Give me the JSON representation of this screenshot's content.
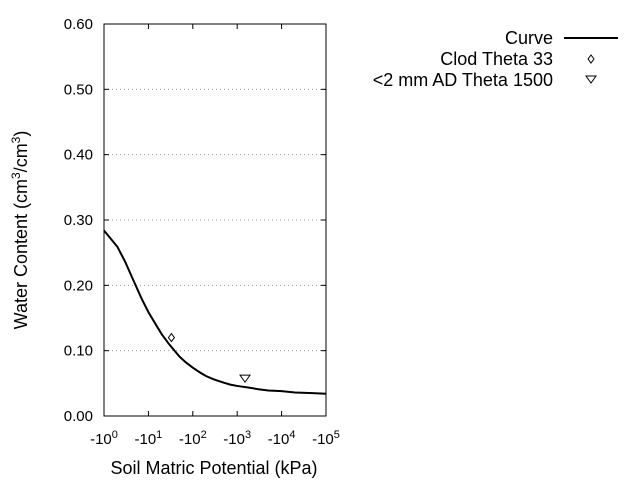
{
  "chart_data": {
    "type": "line",
    "xlabel": "Soil Matric Potential (kPa)",
    "ylabel_main": "Water Content (cm",
    "ylabel_sup1": "3",
    "ylabel_mid": "/cm",
    "ylabel_sup2": "3",
    "ylabel_end": ")",
    "x_scale": "log",
    "x_domain_exponents": [
      0,
      5
    ],
    "x_ticks": [
      {
        "base": "-10",
        "exp": "0"
      },
      {
        "base": "-10",
        "exp": "1"
      },
      {
        "base": "-10",
        "exp": "2"
      },
      {
        "base": "-10",
        "exp": "3"
      },
      {
        "base": "-10",
        "exp": "4"
      },
      {
        "base": "-10",
        "exp": "5"
      }
    ],
    "ylim": [
      0,
      0.6
    ],
    "y_ticks": [
      "0.00",
      "0.10",
      "0.20",
      "0.30",
      "0.40",
      "0.50",
      "0.60"
    ],
    "grid": "horizontal dotted",
    "legend_position": "top-right",
    "series": [
      {
        "name": "Curve",
        "kind": "line",
        "x": [
          -1,
          -2,
          -3,
          -5,
          -7,
          -10,
          -15,
          -20,
          -30,
          -50,
          -70,
          -100,
          -150,
          -200,
          -300,
          -500,
          -700,
          -1000,
          -2000,
          -3000,
          -5000,
          -10000,
          -20000,
          -50000,
          -100000
        ],
        "y": [
          0.284,
          0.259,
          0.236,
          0.202,
          0.18,
          0.159,
          0.139,
          0.125,
          0.109,
          0.091,
          0.082,
          0.074,
          0.066,
          0.061,
          0.056,
          0.051,
          0.048,
          0.046,
          0.043,
          0.041,
          0.039,
          0.038,
          0.036,
          0.035,
          0.034
        ]
      },
      {
        "name": "Clod Theta 33",
        "kind": "marker",
        "marker": "diamond",
        "x": [
          -33
        ],
        "y": [
          0.12
        ]
      },
      {
        "name": "<2 mm AD Theta 1500",
        "kind": "marker",
        "marker": "triangle-down",
        "x": [
          -1500
        ],
        "y": [
          0.058
        ]
      }
    ]
  }
}
